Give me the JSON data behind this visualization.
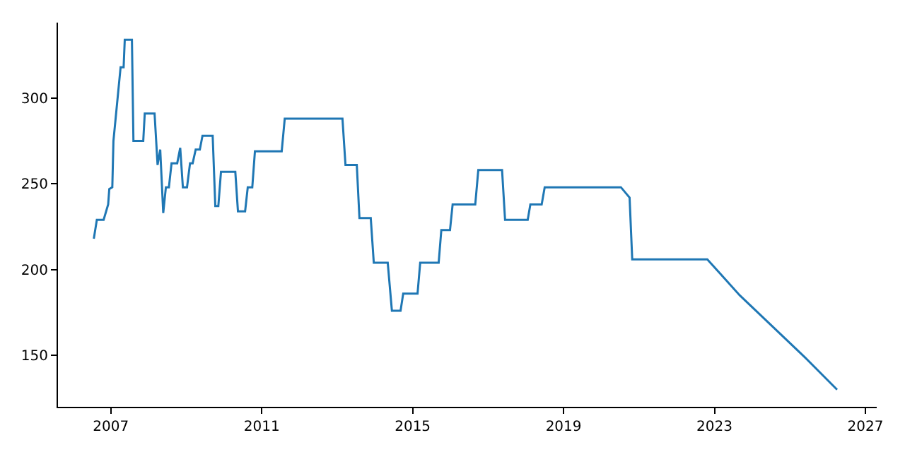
{
  "chart_data": {
    "type": "line",
    "x": [
      2006.55,
      2006.63,
      2006.81,
      2006.93,
      2006.96,
      2007.04,
      2007.07,
      2007.26,
      2007.34,
      2007.37,
      2007.56,
      2007.6,
      2007.86,
      2007.9,
      2008.16,
      2008.24,
      2008.31,
      2008.39,
      2008.46,
      2008.54,
      2008.61,
      2008.76,
      2008.84,
      2008.91,
      2009.02,
      2009.1,
      2009.17,
      2009.25,
      2009.36,
      2009.43,
      2009.7,
      2009.77,
      2009.85,
      2009.92,
      2010.3,
      2010.37,
      2010.56,
      2010.63,
      2010.75,
      2010.82,
      2011.53,
      2011.61,
      2013.14,
      2013.22,
      2013.52,
      2013.59,
      2013.89,
      2013.97,
      2014.34,
      2014.45,
      2014.68,
      2014.75,
      2015.13,
      2015.2,
      2015.69,
      2015.76,
      2015.99,
      2016.06,
      2016.66,
      2016.74,
      2017.37,
      2017.45,
      2018.05,
      2018.12,
      2018.42,
      2018.5,
      2020.52,
      2020.75,
      2020.82,
      2022.81,
      2023.67,
      2024.53,
      2025.39,
      2026.25
    ],
    "series": [
      {
        "color": "#1f77b4",
        "values": [
          218,
          229,
          229,
          238,
          247,
          248,
          275,
          318,
          318,
          334,
          334,
          275,
          275,
          291,
          291,
          261,
          270,
          233,
          248,
          248,
          262,
          262,
          271,
          248,
          248,
          262,
          262,
          270,
          270,
          278,
          278,
          237,
          237,
          257,
          257,
          234,
          234,
          248,
          248,
          269,
          269,
          288,
          288,
          261,
          261,
          230,
          230,
          204,
          204,
          176,
          176,
          186,
          186,
          204,
          204,
          223,
          223,
          238,
          238,
          258,
          258,
          229,
          229,
          238,
          238,
          248,
          248,
          242,
          206,
          206,
          185,
          167,
          149,
          130
        ]
      }
    ],
    "xlim": [
      2005.6,
      2027.3
    ],
    "ylim": [
      120,
      344
    ],
    "xticks": [
      2007,
      2011,
      2015,
      2019,
      2023,
      2027
    ],
    "yticks": [
      150,
      200,
      250,
      300
    ],
    "marker": "none",
    "line_style": "solid"
  }
}
